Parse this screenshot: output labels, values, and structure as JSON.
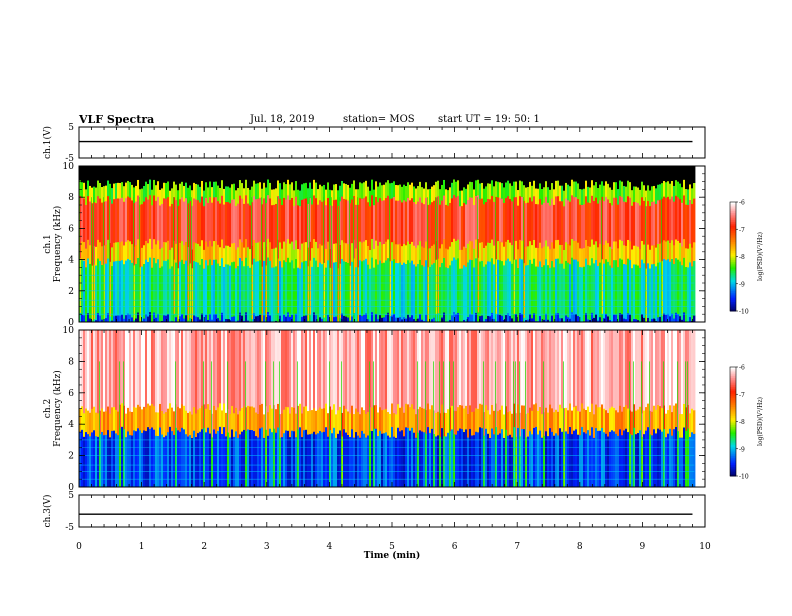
{
  "header": {
    "title": "VLF Spectra",
    "date": "Jul. 18, 2019",
    "station": "station= MOS",
    "start_ut": "start  UT =   19: 50: 1"
  },
  "chart_data": [
    {
      "type": "line",
      "panel": "ch1-voltage",
      "ylabel": "ch.1(V)",
      "ylim": [
        -5,
        5
      ],
      "yticks": [
        "5",
        "-5"
      ],
      "series": [
        {
          "x": [
            0,
            9.8
          ],
          "y": [
            0.3,
            0.3
          ]
        }
      ]
    },
    {
      "type": "heatmap",
      "panel": "ch1-spectrogram",
      "ylabel": "Frequency (kHz)",
      "channel_label": "ch.1",
      "ylim": [
        0,
        10
      ],
      "yticks": [
        "0",
        "2",
        "4",
        "6",
        "8",
        "10"
      ],
      "xlim": [
        0,
        9.83
      ],
      "bands": [
        {
          "from_khz": 0,
          "to_khz": 0.3,
          "level": -9.6
        },
        {
          "from_khz": 0.3,
          "to_khz": 3.8,
          "level": -8.7
        },
        {
          "from_khz": 3.8,
          "to_khz": 5.0,
          "level": -7.8
        },
        {
          "from_khz": 5.0,
          "to_khz": 7.8,
          "level": -6.8
        },
        {
          "from_khz": 7.8,
          "to_khz": 8.8,
          "level": -8.2
        },
        {
          "from_khz": 8.8,
          "to_khz": 10,
          "level": null
        }
      ],
      "colorbar": {
        "label": "log(PSD)(V²/Hz)",
        "range": [
          -10,
          -6
        ],
        "ticks": [
          "-6",
          "-7",
          "-8",
          "-9",
          "-10"
        ]
      }
    },
    {
      "type": "heatmap",
      "panel": "ch2-spectrogram",
      "ylabel": "Frequency (kHz)",
      "channel_label": "ch.2",
      "ylim": [
        0,
        10
      ],
      "yticks": [
        "0",
        "2",
        "4",
        "6",
        "8",
        "10"
      ],
      "xlim": [
        0,
        9.83
      ],
      "bands": [
        {
          "from_khz": 0,
          "to_khz": 3.5,
          "level": -9.4
        },
        {
          "from_khz": 3.5,
          "to_khz": 5.0,
          "level": -7.6
        },
        {
          "from_khz": 5.0,
          "to_khz": 10,
          "level": -6.3
        }
      ],
      "colorbar": {
        "label": "log(PSD)(V²/Hz)",
        "range": [
          -10,
          -6
        ],
        "ticks": [
          "-6",
          "-7",
          "-8",
          "-9",
          "-10"
        ]
      }
    },
    {
      "type": "line",
      "panel": "ch3-voltage",
      "ylabel": "ch.3(V)",
      "ylim": [
        -5,
        5
      ],
      "yticks": [
        "5",
        "-5"
      ],
      "series": [
        {
          "x": [
            0,
            9.8
          ],
          "y": [
            -1,
            -1
          ]
        }
      ]
    }
  ],
  "xaxis": {
    "xlabel": "Time (min)",
    "xlim": [
      0,
      10
    ],
    "ticks": [
      "0",
      "1",
      "2",
      "3",
      "4",
      "5",
      "6",
      "7",
      "8",
      "9",
      "10"
    ]
  },
  "colors": {
    "colormap": [
      "#ffffff",
      "#ff9090",
      "#ff2200",
      "#ff8800",
      "#ffee00",
      "#22ee00",
      "#00e0e0",
      "#0030ff",
      "#000060",
      "#000000"
    ],
    "axis": "#000000",
    "line": "#000000"
  }
}
